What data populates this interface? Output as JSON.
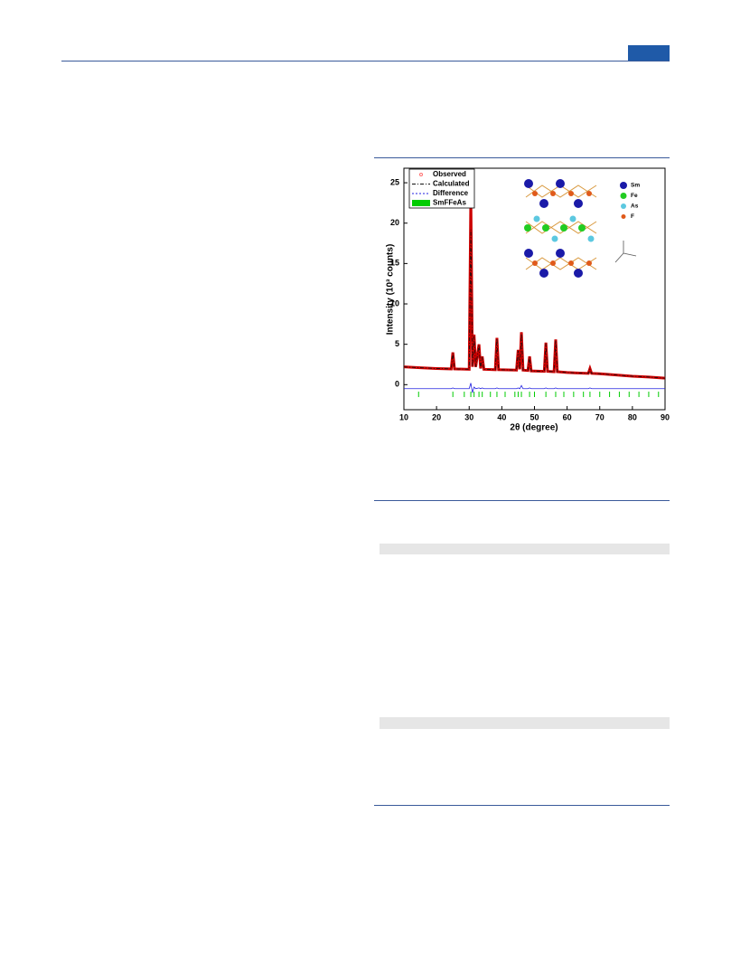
{
  "chart_data": {
    "type": "line",
    "x_label": "2θ (degree)",
    "y_label": "Intensity (10³ counts)",
    "xlim": [
      10,
      90
    ],
    "xticks": [
      10,
      20,
      30,
      40,
      50,
      60,
      70,
      80,
      90
    ],
    "ylim": [
      -3.1,
      26.8
    ],
    "yticks": [
      0,
      5,
      10,
      15,
      20,
      25
    ],
    "x": [
      10,
      15,
      20,
      24.5,
      25,
      25.5,
      30,
      30.5,
      31,
      31.5,
      32,
      33,
      33.5,
      34,
      34.5,
      38,
      38.5,
      39,
      44.5,
      45,
      45.5,
      46,
      46.5,
      48,
      48.5,
      49,
      53,
      53.5,
      54,
      56,
      56.5,
      57,
      60,
      66.5,
      67,
      67.5,
      70,
      75,
      80,
      85,
      90
    ],
    "series": [
      {
        "name": "Observed",
        "color": "#cc0000",
        "values": [
          2.2,
          2.1,
          2.0,
          1.95,
          4.0,
          1.95,
          1.9,
          23.5,
          2.2,
          6.2,
          2.2,
          5.0,
          2.0,
          3.5,
          1.9,
          1.85,
          5.8,
          1.85,
          1.8,
          4.3,
          1.9,
          6.5,
          1.8,
          1.75,
          3.5,
          1.7,
          1.65,
          5.2,
          1.65,
          1.6,
          5.6,
          1.6,
          1.5,
          1.4,
          2.0,
          1.4,
          1.35,
          1.2,
          1.05,
          0.95,
          0.8
        ]
      },
      {
        "name": "Calculated",
        "color": "#111111",
        "values": [
          2.2,
          2.1,
          2.0,
          1.95,
          3.9,
          1.95,
          1.9,
          19.2,
          2.2,
          6.0,
          2.2,
          4.9,
          2.0,
          3.4,
          1.9,
          1.85,
          5.7,
          1.85,
          1.8,
          4.2,
          1.9,
          6.3,
          1.8,
          1.75,
          3.4,
          1.7,
          1.65,
          5.1,
          1.65,
          1.6,
          5.5,
          1.6,
          1.5,
          1.4,
          1.9,
          1.4,
          1.35,
          1.2,
          1.05,
          0.95,
          0.8
        ]
      },
      {
        "name": "Difference",
        "color": "#2020e0",
        "values": [
          -0.5,
          -0.5,
          -0.5,
          -0.5,
          -0.4,
          -0.5,
          -0.5,
          0.2,
          -1.0,
          -0.3,
          -0.5,
          -0.4,
          -0.5,
          -0.4,
          -0.5,
          -0.5,
          -0.4,
          -0.5,
          -0.5,
          -0.4,
          -0.5,
          -0.1,
          -0.5,
          -0.5,
          -0.4,
          -0.5,
          -0.5,
          -0.4,
          -0.5,
          -0.5,
          -0.4,
          -0.5,
          -0.5,
          -0.5,
          -0.4,
          -0.5,
          -0.5,
          -0.5,
          -0.5,
          -0.5,
          -0.5
        ]
      },
      {
        "name": "SmFFeAs",
        "color": "#00cc00",
        "x": [
          14.5,
          25,
          28.5,
          30.5,
          31.5,
          33,
          34,
          36.5,
          38.5,
          41,
          44,
          45,
          46,
          48.5,
          50,
          53.5,
          56.5,
          59,
          62,
          65,
          67,
          70,
          73,
          76,
          79,
          82,
          85,
          88
        ],
        "values": [
          -1.2,
          -1.2,
          -1.2,
          -1.2,
          -1.2,
          -1.2,
          -1.2,
          -1.2,
          -1.2,
          -1.2,
          -1.2,
          -1.2,
          -1.2,
          -1.2,
          -1.2,
          -1.2,
          -1.2,
          -1.2,
          -1.2,
          -1.2,
          -1.2,
          -1.2,
          -1.2,
          -1.2,
          -1.2,
          -1.2,
          -1.2,
          -1.2
        ]
      }
    ],
    "structure_legend": [
      {
        "label": "Sm",
        "color": "#1a1aa8"
      },
      {
        "label": "Fe",
        "color": "#22cc22"
      },
      {
        "label": "As",
        "color": "#5cc8e0"
      },
      {
        "label": "F",
        "color": "#e05a1a"
      }
    ]
  }
}
